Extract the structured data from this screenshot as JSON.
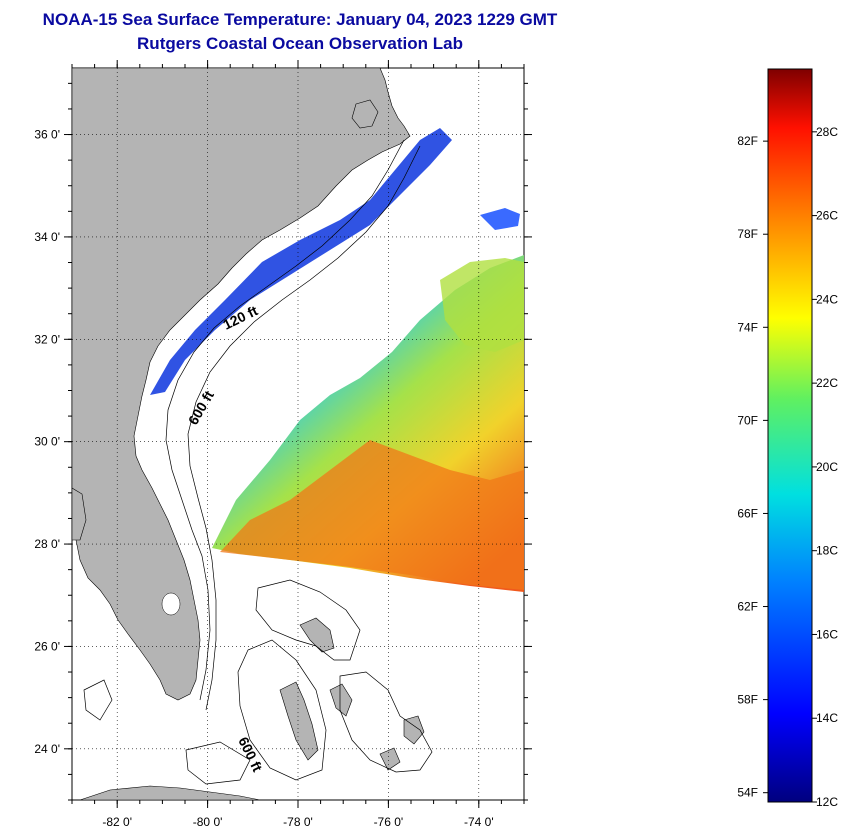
{
  "header": {
    "title": "NOAA-15 Sea Surface Temperature:  January 04, 2023 1229 GMT",
    "subtitle": "Rutgers Coastal Ocean Observation Lab"
  },
  "map": {
    "lat_ticks": [
      {
        "label": "36 0'",
        "value": 36
      },
      {
        "label": "34 0'",
        "value": 34
      },
      {
        "label": "32 0'",
        "value": 32
      },
      {
        "label": "30 0'",
        "value": 30
      },
      {
        "label": "28 0'",
        "value": 28
      },
      {
        "label": "26 0'",
        "value": 26
      },
      {
        "label": "24 0'",
        "value": 24
      }
    ],
    "lon_ticks": [
      {
        "label": "-82 0'",
        "value": -82
      },
      {
        "label": "-80 0'",
        "value": -80
      },
      {
        "label": "-78 0'",
        "value": -78
      },
      {
        "label": "-76 0'",
        "value": -76
      },
      {
        "label": "-74 0'",
        "value": -74
      }
    ],
    "lat_range": [
      23,
      37.3
    ],
    "lon_range": [
      -83,
      -73
    ],
    "contour_labels": [
      "120 ft",
      "600 ft",
      "600 ft"
    ],
    "colors": {
      "land": "#b4b4b4",
      "ocean_nodata": "#ffffff",
      "grid": "#000000"
    }
  },
  "colorbar": {
    "fahrenheit_labels": [
      "82F",
      "78F",
      "74F",
      "70F",
      "66F",
      "62F",
      "58F",
      "54F"
    ],
    "celsius_labels": [
      "28C",
      "26C",
      "24C",
      "22C",
      "20C",
      "18C",
      "16C",
      "14C",
      "12C"
    ],
    "range_c": [
      12,
      29.5
    ]
  }
}
